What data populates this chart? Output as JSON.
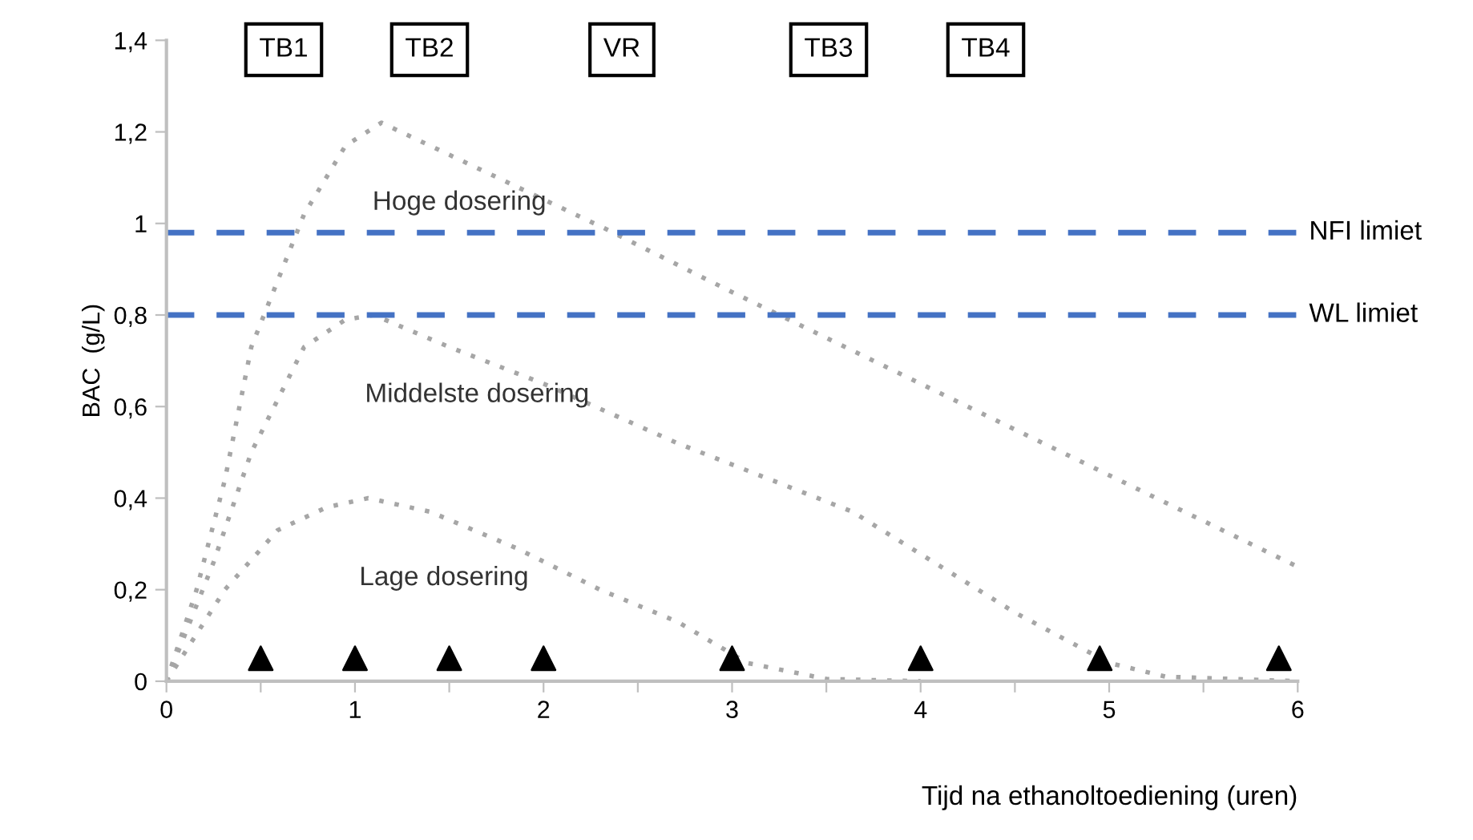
{
  "chart_data": {
    "type": "line",
    "xlabel": "Tijd na ethanoltoediening (uren)",
    "ylabel": "BAC  (g/L)",
    "xlim": [
      0,
      6
    ],
    "ylim": [
      0,
      1.4
    ],
    "xticks": [
      0,
      {
        "value": 0.5,
        "label": null
      },
      1,
      {
        "value": 1.5,
        "label": null
      },
      2,
      {
        "value": 2.5,
        "label": null
      },
      3,
      {
        "value": 3.5,
        "label": null
      },
      4,
      {
        "value": 4.5,
        "label": null
      },
      5,
      {
        "value": 5.5,
        "label": null
      },
      6
    ],
    "yticks": [
      0,
      {
        "value": 0.2,
        "label": "0,2"
      },
      {
        "value": 0.4,
        "label": "0,4"
      },
      {
        "value": 0.6,
        "label": "0,6"
      },
      {
        "value": 0.8,
        "label": "0,8"
      },
      1,
      {
        "value": 1.2,
        "label": "1,2"
      },
      {
        "value": 1.4,
        "label": "1,4"
      }
    ],
    "grid": false,
    "legend": false,
    "line_style": "dotted",
    "marker": "none",
    "series": [
      {
        "name": "Hoge dosering",
        "color": "#a6a6a6",
        "x": [
          0,
          0.16,
          0.31,
          0.45,
          0.73,
          0.95,
          1.14,
          1.5,
          2.32,
          3,
          4,
          5,
          6
        ],
        "values": [
          0,
          0.2,
          0.44,
          0.73,
          1.02,
          1.17,
          1.22,
          1.15,
          0.99,
          0.85,
          0.65,
          0.45,
          0.25
        ]
      },
      {
        "name": "Middelste dosering",
        "color": "#a6a6a6",
        "x": [
          0,
          0.25,
          0.45,
          0.73,
          0.95,
          1.1,
          1.5,
          2.0,
          2.71,
          3.64,
          4.5,
          5.0,
          5.3,
          6
        ],
        "values": [
          0,
          0.26,
          0.5,
          0.73,
          0.79,
          0.8,
          0.73,
          0.65,
          0.52,
          0.37,
          0.15,
          0.04,
          0.01,
          0
        ]
      },
      {
        "name": "Lage dosering",
        "color": "#a6a6a6",
        "x": [
          0,
          0.31,
          0.59,
          0.85,
          1.07,
          1.4,
          1.86,
          2.3,
          2.71,
          3.08,
          3.5,
          4
        ],
        "values": [
          0,
          0.2,
          0.33,
          0.38,
          0.4,
          0.37,
          0.29,
          0.2,
          0.13,
          0.04,
          0.005,
          0
        ]
      },
      {
        "type": "scatter",
        "marker": "triangle",
        "color": "#000000",
        "x": [
          0.5,
          1.0,
          1.5,
          2.0,
          3.0,
          4.0,
          4.95,
          5.9
        ],
        "values": [
          0.05,
          0.05,
          0.05,
          0.05,
          0.05,
          0.05,
          0.05,
          0.05
        ]
      }
    ],
    "ref_lines": [
      {
        "axis": "y",
        "value": 0.98,
        "label": "NFI limiet",
        "color": "#4472c4",
        "line_style": "dashed"
      },
      {
        "axis": "y",
        "value": 0.8,
        "label": "WL limiet",
        "color": "#4472c4",
        "line_style": "dashed"
      }
    ],
    "annotations": [
      "TB1",
      "TB2",
      "VR",
      "TB3",
      "TB4"
    ]
  }
}
